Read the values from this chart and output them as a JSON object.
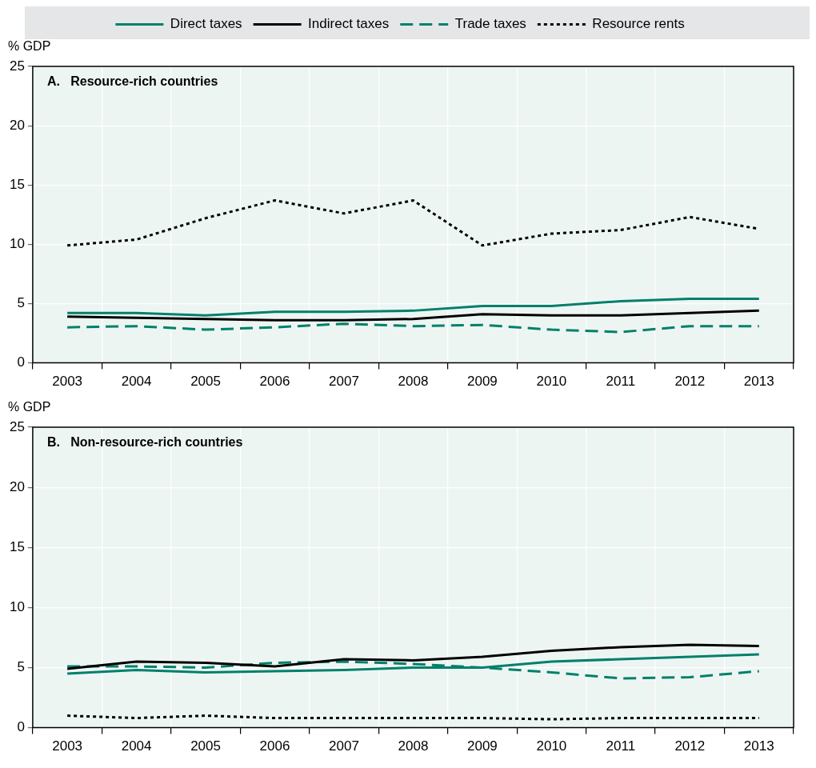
{
  "chart_data": [
    {
      "type": "line",
      "title": "A.   Resource-rich countries",
      "ylabel": "% GDP",
      "categories": [
        "2003",
        "2004",
        "2005",
        "2006",
        "2007",
        "2008",
        "2009",
        "2010",
        "2011",
        "2012",
        "2013"
      ],
      "ylim": [
        0,
        25
      ],
      "yticks": [
        0,
        5,
        10,
        15,
        20,
        25
      ],
      "grid": true,
      "legend": "top",
      "marker": "none",
      "series": [
        {
          "name": "Direct taxes",
          "color": "#00806a",
          "line_style": "solid",
          "values": [
            4.2,
            4.2,
            4.0,
            4.3,
            4.3,
            4.4,
            4.8,
            4.8,
            5.2,
            5.4,
            5.4
          ]
        },
        {
          "name": "Indirect taxes",
          "color": "#000000",
          "line_style": "solid",
          "values": [
            3.9,
            3.8,
            3.7,
            3.6,
            3.6,
            3.7,
            4.1,
            4.0,
            4.0,
            4.2,
            4.4
          ]
        },
        {
          "name": "Trade taxes",
          "color": "#00806a",
          "line_style": "dashed",
          "values": [
            3.0,
            3.1,
            2.8,
            3.0,
            3.3,
            3.1,
            3.2,
            2.8,
            2.6,
            3.1,
            3.1
          ]
        },
        {
          "name": "Resource rents",
          "color": "#000000",
          "line_style": "dotted",
          "values": [
            9.9,
            10.4,
            12.2,
            13.7,
            12.6,
            13.7,
            9.9,
            10.9,
            11.2,
            12.3,
            11.3
          ]
        }
      ]
    },
    {
      "type": "line",
      "title": "B.   Non-resource-rich countries",
      "ylabel": "% GDP",
      "categories": [
        "2003",
        "2004",
        "2005",
        "2006",
        "2007",
        "2008",
        "2009",
        "2010",
        "2011",
        "2012",
        "2013"
      ],
      "ylim": [
        0,
        25
      ],
      "yticks": [
        0,
        5,
        10,
        15,
        20,
        25
      ],
      "grid": true,
      "marker": "none",
      "series": [
        {
          "color": "#00806a",
          "line_style": "solid",
          "values": [
            4.5,
            4.8,
            4.6,
            4.7,
            4.8,
            5.0,
            5.0,
            5.5,
            5.7,
            5.9,
            6.1
          ]
        },
        {
          "color": "#000000",
          "line_style": "solid",
          "values": [
            4.9,
            5.5,
            5.4,
            5.1,
            5.7,
            5.6,
            5.9,
            6.4,
            6.7,
            6.9,
            6.8
          ]
        },
        {
          "color": "#00806a",
          "line_style": "dashed",
          "values": [
            5.1,
            5.1,
            5.0,
            5.4,
            5.5,
            5.3,
            5.0,
            4.6,
            4.1,
            4.2,
            4.7
          ]
        },
        {
          "color": "#000000",
          "line_style": "dotted",
          "values": [
            1.0,
            0.8,
            1.0,
            0.8,
            0.8,
            0.8,
            0.8,
            0.7,
            0.8,
            0.8,
            0.8
          ]
        }
      ]
    }
  ]
}
